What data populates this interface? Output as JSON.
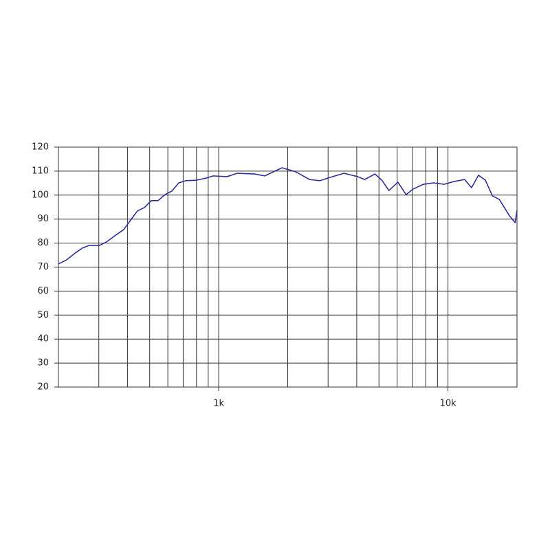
{
  "chart_data": {
    "type": "line",
    "xscale": "log",
    "xlim": [
      200,
      20000
    ],
    "ylim": [
      20,
      120
    ],
    "yticks": [
      20,
      30,
      40,
      50,
      60,
      70,
      80,
      90,
      100,
      110,
      120
    ],
    "xticks": [
      {
        "value": 1000,
        "label": "1k"
      },
      {
        "value": 10000,
        "label": "10k"
      }
    ],
    "xgrid": [
      300,
      400,
      500,
      600,
      700,
      800,
      900,
      1000,
      2000,
      3000,
      4000,
      5000,
      6000,
      7000,
      8000,
      9000,
      10000
    ],
    "grid": true,
    "x": [
      200,
      217,
      237,
      254,
      272,
      302,
      324,
      359,
      385,
      413,
      442,
      474,
      508,
      544,
      583,
      625,
      670,
      718,
      796,
      883,
      946,
      1087,
      1205,
      1433,
      1589,
      1704,
      1889,
      2169,
      2491,
      2762,
      3063,
      3518,
      4040,
      4331,
      4804,
      5152,
      5524,
      6049,
      6566,
      7038,
      7807,
      8660,
      9606,
      10656,
      11820,
      12672,
      13585,
      14565,
      15614,
      16739,
      18570,
      19630,
      20000
    ],
    "series": [
      {
        "color": "#2e2e9c",
        "values": [
          71.3,
          73,
          75.9,
          77.9,
          79,
          79,
          80.5,
          83.6,
          85.6,
          89.6,
          93.4,
          94.8,
          97.7,
          97.7,
          100.2,
          101.7,
          105.1,
          106,
          106.2,
          107.1,
          108,
          107.7,
          109.1,
          108.8,
          108,
          109.4,
          111.4,
          109.7,
          106.5,
          106,
          107.4,
          109.1,
          107.7,
          106.5,
          108.8,
          106.2,
          101.9,
          105.4,
          100.2,
          102.5,
          104.5,
          105.1,
          104.5,
          105.7,
          106.5,
          103.1,
          108.3,
          106.2,
          99.7,
          98.2,
          91.3,
          88.5,
          93.6
        ]
      }
    ]
  }
}
